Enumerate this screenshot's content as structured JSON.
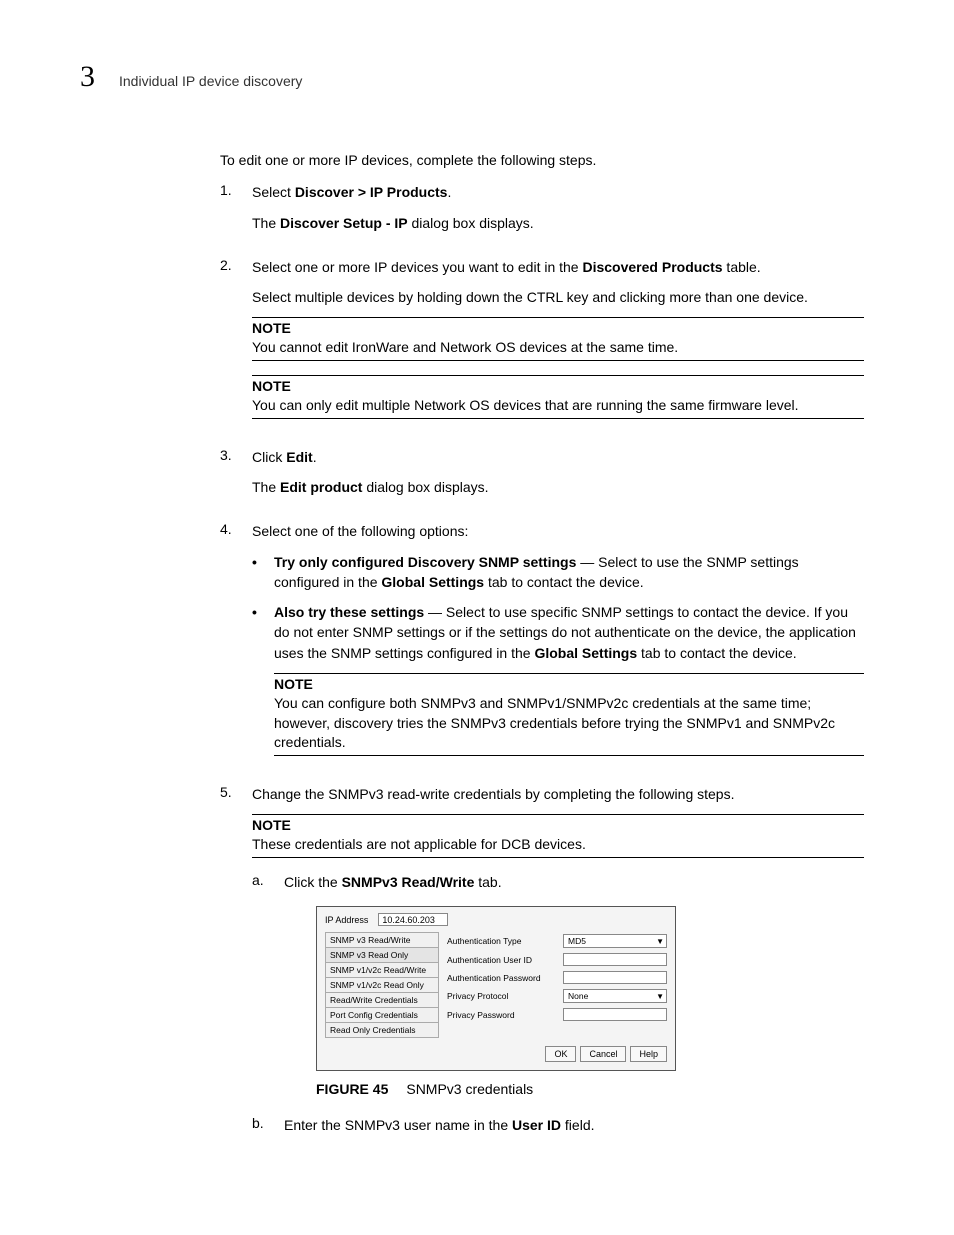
{
  "header": {
    "chapter_number": "3",
    "title": "Individual IP device discovery"
  },
  "intro": "To edit one or more IP devices, complete the following steps.",
  "steps": [
    {
      "num": "1.",
      "lines": [
        {
          "parts": [
            {
              "t": "Select ",
              "b": false
            },
            {
              "t": "Discover > IP Products",
              "b": true
            },
            {
              "t": ".",
              "b": false
            }
          ]
        },
        {
          "parts": [
            {
              "t": "The ",
              "b": false
            },
            {
              "t": "Discover Setup - IP",
              "b": true
            },
            {
              "t": " dialog box displays.",
              "b": false
            }
          ]
        }
      ]
    },
    {
      "num": "2.",
      "lines": [
        {
          "parts": [
            {
              "t": "Select one or more IP devices you want to edit in the ",
              "b": false
            },
            {
              "t": "Discovered Products",
              "b": true
            },
            {
              "t": " table.",
              "b": false
            }
          ]
        },
        {
          "parts": [
            {
              "t": "Select multiple devices by holding down the CTRL key and clicking more than one device.",
              "b": false
            }
          ]
        }
      ],
      "notes_after": [
        {
          "label": "NOTE",
          "text": "You cannot edit IronWare and Network OS devices at the same time."
        },
        {
          "label": "NOTE",
          "text": "You can only edit multiple Network OS devices that are running the same firmware level."
        }
      ]
    },
    {
      "num": "3.",
      "lines": [
        {
          "parts": [
            {
              "t": "Click ",
              "b": false
            },
            {
              "t": "Edit",
              "b": true
            },
            {
              "t": ".",
              "b": false
            }
          ]
        },
        {
          "parts": [
            {
              "t": "The ",
              "b": false
            },
            {
              "t": "Edit product",
              "b": true
            },
            {
              "t": " dialog box displays.",
              "b": false
            }
          ]
        }
      ]
    },
    {
      "num": "4.",
      "lines": [
        {
          "parts": [
            {
              "t": "Select one of the following options:",
              "b": false
            }
          ]
        }
      ],
      "bullets": [
        {
          "parts": [
            {
              "t": "Try only configured Discovery SNMP settings",
              "b": true
            },
            {
              "t": " — Select to use the SNMP settings configured in the ",
              "b": false
            },
            {
              "t": "Global Settings",
              "b": true
            },
            {
              "t": " tab to contact the device.",
              "b": false
            }
          ]
        },
        {
          "parts": [
            {
              "t": "Also try these settings",
              "b": true
            },
            {
              "t": " — Select to use specific SNMP settings to contact the device. If you do not enter SNMP settings or if the settings do not authenticate on the device, the application uses the SNMP settings configured in the ",
              "b": false
            },
            {
              "t": "Global Settings",
              "b": true
            },
            {
              "t": " tab to contact the device.",
              "b": false
            }
          ]
        }
      ],
      "bullet_note": {
        "label": "NOTE",
        "text": "You can configure both SNMPv3 and SNMPv1/SNMPv2c credentials at the same time; however, discovery tries the SNMPv3 credentials before trying the SNMPv1 and SNMPv2c credentials."
      }
    },
    {
      "num": "5.",
      "lines": [
        {
          "parts": [
            {
              "t": "Change the SNMPv3 read-write credentials by completing the following steps.",
              "b": false
            }
          ]
        }
      ],
      "notes_after": [
        {
          "label": "NOTE",
          "text": "These credentials are not applicable for DCB devices."
        }
      ],
      "substeps": [
        {
          "letter": "a.",
          "parts": [
            {
              "t": "Click the ",
              "b": false
            },
            {
              "t": "SNMPv3 Read/Write",
              "b": true
            },
            {
              "t": " tab.",
              "b": false
            }
          ],
          "has_figure": true
        },
        {
          "letter": "b.",
          "parts": [
            {
              "t": "Enter the SNMPv3 user name in the ",
              "b": false
            },
            {
              "t": "User ID",
              "b": true
            },
            {
              "t": " field.",
              "b": false
            }
          ]
        }
      ]
    }
  ],
  "figure": {
    "ip_label": "IP Address",
    "ip_value": "10.24.60.203",
    "tabs": [
      "SNMP v3 Read/Write",
      "SNMP v3 Read Only",
      "SNMP v1/v2c Read/Write",
      "SNMP v1/v2c Read Only",
      "Read/Write Credentials",
      "Port Config Credentials",
      "Read Only Credentials"
    ],
    "selected_tab_index": 1,
    "fields": [
      {
        "label": "Authentication Type",
        "type": "select",
        "value": "MD5"
      },
      {
        "label": "Authentication User ID",
        "type": "text",
        "value": ""
      },
      {
        "label": "Authentication Password",
        "type": "text",
        "value": ""
      },
      {
        "label": "Privacy Protocol",
        "type": "select",
        "value": "None"
      },
      {
        "label": "Privacy Password",
        "type": "text",
        "value": ""
      }
    ],
    "buttons": [
      "OK",
      "Cancel",
      "Help"
    ],
    "caption_label": "FIGURE 45",
    "caption_text": "SNMPv3 credentials"
  },
  "colors": {
    "text": "#000000",
    "bg": "#ffffff",
    "rule": "#000000",
    "dialog_bg": "#f4f4f4",
    "dialog_border": "#555555",
    "input_border": "#888888",
    "tab_border": "#aaaaaa"
  }
}
